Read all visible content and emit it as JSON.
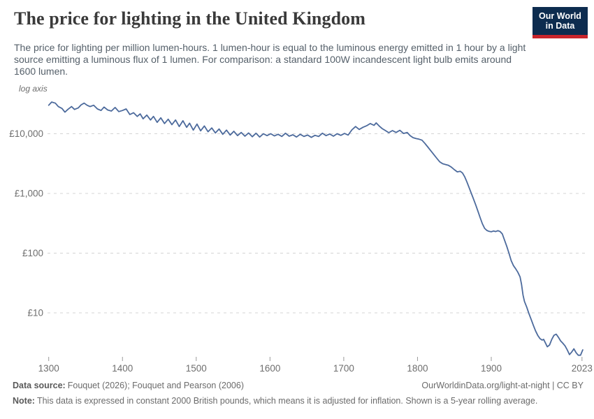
{
  "header": {
    "title": "The price for lighting in the United Kingdom",
    "subtitle": "The price for lighting per million lumen-hours. 1 lumen-hour is equal to the luminous energy emitted in 1 hour by a light source emitting a luminous flux of 1 lumen. For comparison: a standard 100W incandescent light bulb emits around 1600 lumen.",
    "logo": {
      "line1": "Our World",
      "line2": "in Data",
      "bg_color": "#0d2c4f",
      "accent_color": "#c9252c"
    }
  },
  "footer": {
    "source_label": "Data source:",
    "source_text": "Fouquet (2026); Fouquet and Pearson (2006)",
    "attribution": "OurWorldinData.org/light-at-night | CC BY",
    "note_label": "Note:",
    "note_text": "This data is expressed in constant 2000 British pounds, which means it is adjusted for inflation. Shown is a 5-year rolling average."
  },
  "chart_data": {
    "type": "line",
    "title": "The price for lighting in the United Kingdom",
    "log_axis_label": "log axis",
    "y_scale": "log",
    "grid": true,
    "legend": "none",
    "unit": "British pounds per million lumen-hours (constant 2000 GBP)",
    "line_color": "#4c6a9c",
    "grid_color": "#d4d4d4",
    "tick_label_color": "#6e6e6e",
    "tick_mark_color": "#9a9a9a",
    "x_range": [
      1300,
      2026
    ],
    "y_range_displayed": [
      1.6,
      39000
    ],
    "x_ticks": [
      1300,
      1400,
      1500,
      1600,
      1700,
      1800,
      1900,
      2023
    ],
    "y_ticks": [
      {
        "value": 10000,
        "label": "£10,000"
      },
      {
        "value": 1000,
        "label": "£1,000"
      },
      {
        "value": 100,
        "label": "£100"
      },
      {
        "value": 10,
        "label": "£10"
      }
    ],
    "points": [
      [
        1300,
        30000
      ],
      [
        1304,
        34000
      ],
      [
        1309,
        32500
      ],
      [
        1313,
        28500
      ],
      [
        1318,
        26500
      ],
      [
        1322,
        23000
      ],
      [
        1326,
        25500
      ],
      [
        1331,
        28500
      ],
      [
        1335,
        25500
      ],
      [
        1340,
        27000
      ],
      [
        1344,
        30500
      ],
      [
        1348,
        32500
      ],
      [
        1352,
        30000
      ],
      [
        1356,
        28500
      ],
      [
        1361,
        30000
      ],
      [
        1366,
        26000
      ],
      [
        1371,
        24500
      ],
      [
        1375,
        28000
      ],
      [
        1380,
        25000
      ],
      [
        1385,
        24000
      ],
      [
        1390,
        27500
      ],
      [
        1395,
        23500
      ],
      [
        1400,
        24500
      ],
      [
        1405,
        26000
      ],
      [
        1410,
        21000
      ],
      [
        1415,
        22500
      ],
      [
        1420,
        19500
      ],
      [
        1424,
        21500
      ],
      [
        1428,
        17800
      ],
      [
        1433,
        20500
      ],
      [
        1438,
        17000
      ],
      [
        1442,
        19500
      ],
      [
        1447,
        15500
      ],
      [
        1452,
        18500
      ],
      [
        1457,
        14800
      ],
      [
        1462,
        17500
      ],
      [
        1467,
        14200
      ],
      [
        1472,
        17000
      ],
      [
        1477,
        13200
      ],
      [
        1482,
        16500
      ],
      [
        1487,
        12800
      ],
      [
        1491,
        15000
      ],
      [
        1496,
        11500
      ],
      [
        1501,
        14500
      ],
      [
        1506,
        11200
      ],
      [
        1511,
        13500
      ],
      [
        1516,
        10800
      ],
      [
        1521,
        12500
      ],
      [
        1526,
        10300
      ],
      [
        1531,
        12000
      ],
      [
        1536,
        9800
      ],
      [
        1541,
        11500
      ],
      [
        1546,
        9500
      ],
      [
        1551,
        11000
      ],
      [
        1556,
        9300
      ],
      [
        1561,
        10500
      ],
      [
        1566,
        9100
      ],
      [
        1571,
        10300
      ],
      [
        1576,
        8900
      ],
      [
        1581,
        10200
      ],
      [
        1586,
        8800
      ],
      [
        1591,
        10000
      ],
      [
        1596,
        9300
      ],
      [
        1601,
        10000
      ],
      [
        1606,
        9200
      ],
      [
        1611,
        9800
      ],
      [
        1616,
        9000
      ],
      [
        1621,
        10200
      ],
      [
        1626,
        9100
      ],
      [
        1631,
        9600
      ],
      [
        1636,
        8800
      ],
      [
        1641,
        9800
      ],
      [
        1646,
        9000
      ],
      [
        1651,
        9500
      ],
      [
        1656,
        8700
      ],
      [
        1661,
        9400
      ],
      [
        1666,
        9000
      ],
      [
        1671,
        10200
      ],
      [
        1676,
        9300
      ],
      [
        1681,
        9900
      ],
      [
        1686,
        9100
      ],
      [
        1691,
        10000
      ],
      [
        1696,
        9400
      ],
      [
        1701,
        10100
      ],
      [
        1706,
        9500
      ],
      [
        1711,
        11600
      ],
      [
        1716,
        13200
      ],
      [
        1721,
        11800
      ],
      [
        1726,
        12800
      ],
      [
        1731,
        13600
      ],
      [
        1736,
        14800
      ],
      [
        1741,
        13800
      ],
      [
        1744,
        15200
      ],
      [
        1748,
        13500
      ],
      [
        1752,
        12200
      ],
      [
        1756,
        11400
      ],
      [
        1761,
        10400
      ],
      [
        1766,
        11300
      ],
      [
        1771,
        10500
      ],
      [
        1776,
        11400
      ],
      [
        1781,
        10100
      ],
      [
        1786,
        10500
      ],
      [
        1790,
        9300
      ],
      [
        1794,
        8600
      ],
      [
        1798,
        8300
      ],
      [
        1802,
        8100
      ],
      [
        1806,
        7800
      ],
      [
        1810,
        6900
      ],
      [
        1814,
        6000
      ],
      [
        1818,
        5200
      ],
      [
        1822,
        4500
      ],
      [
        1826,
        3900
      ],
      [
        1830,
        3400
      ],
      [
        1834,
        3150
      ],
      [
        1838,
        3050
      ],
      [
        1842,
        2950
      ],
      [
        1846,
        2750
      ],
      [
        1850,
        2500
      ],
      [
        1854,
        2300
      ],
      [
        1858,
        2350
      ],
      [
        1861,
        2200
      ],
      [
        1864,
        1900
      ],
      [
        1867,
        1550
      ],
      [
        1870,
        1250
      ],
      [
        1873,
        1000
      ],
      [
        1876,
        800
      ],
      [
        1879,
        640
      ],
      [
        1882,
        500
      ],
      [
        1885,
        390
      ],
      [
        1888,
        310
      ],
      [
        1891,
        260
      ],
      [
        1894,
        240
      ],
      [
        1897,
        232
      ],
      [
        1900,
        228
      ],
      [
        1903,
        235
      ],
      [
        1906,
        230
      ],
      [
        1909,
        238
      ],
      [
        1912,
        230
      ],
      [
        1915,
        210
      ],
      [
        1918,
        165
      ],
      [
        1921,
        130
      ],
      [
        1924,
        100
      ],
      [
        1927,
        75
      ],
      [
        1930,
        62
      ],
      [
        1933,
        55
      ],
      [
        1936,
        48
      ],
      [
        1939,
        40
      ],
      [
        1941,
        30
      ],
      [
        1943,
        20
      ],
      [
        1945,
        15.5
      ],
      [
        1948,
        12.5
      ],
      [
        1951,
        9.8
      ],
      [
        1954,
        7.8
      ],
      [
        1957,
        6.2
      ],
      [
        1960,
        5.0
      ],
      [
        1963,
        4.2
      ],
      [
        1966,
        3.7
      ],
      [
        1969,
        3.5
      ],
      [
        1971,
        3.6
      ],
      [
        1973,
        3.2
      ],
      [
        1976,
        2.7
      ],
      [
        1979,
        2.9
      ],
      [
        1982,
        3.6
      ],
      [
        1985,
        4.2
      ],
      [
        1988,
        4.4
      ],
      [
        1991,
        3.9
      ],
      [
        1994,
        3.4
      ],
      [
        1997,
        3.1
      ],
      [
        2000,
        2.8
      ],
      [
        2003,
        2.4
      ],
      [
        2006,
        2.0
      ],
      [
        2009,
        2.2
      ],
      [
        2012,
        2.5
      ],
      [
        2015,
        2.15
      ],
      [
        2018,
        1.95
      ],
      [
        2021,
        1.95
      ],
      [
        2024,
        2.4
      ]
    ]
  }
}
